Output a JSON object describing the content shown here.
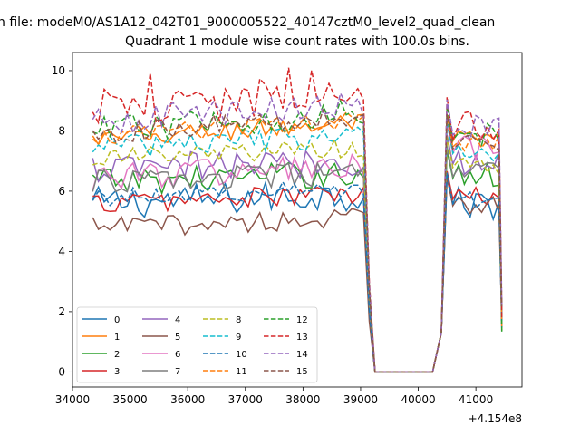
{
  "figure": {
    "suptitle": "n file: modeM0/AS1A12_042T01_9000005522_40147cztM0_level2_quad_clean",
    "title": "Quadrant 1 module wise count rates with 100.0s bins.",
    "offset_label": "+4.154e8"
  },
  "chart_data": {
    "type": "line",
    "title": "Quadrant 1 module wise count rates with 100.0s bins.",
    "xlabel": "",
    "ylabel": "",
    "x_offset": 415400000,
    "xlim": [
      34000,
      41800
    ],
    "ylim": [
      -0.5,
      10.6
    ],
    "xticks": [
      34000,
      35000,
      36000,
      37000,
      38000,
      39000,
      40000,
      41000
    ],
    "xtick_labels": [
      "34000",
      "35000",
      "36000",
      "37000",
      "38000",
      "39000",
      "40000",
      "41000"
    ],
    "yticks": [
      0,
      2,
      4,
      6,
      8,
      10
    ],
    "ytick_labels": [
      "0",
      "2",
      "4",
      "6",
      "8",
      "10"
    ],
    "grid": false,
    "legend_location": "lower-left",
    "legend_columns": 4,
    "segments": [
      {
        "start": 34350,
        "end": 39050,
        "step": 100
      },
      {
        "start": 40350,
        "end": 41450,
        "step": 100
      }
    ],
    "gap_level": 0,
    "series": [
      {
        "name": "0",
        "color": "#1f77b4",
        "dash": "solid",
        "level1": 5.6,
        "level2": 5.6,
        "amp": 0.55
      },
      {
        "name": "1",
        "color": "#ff7f0e",
        "dash": "solid",
        "level1": 7.7,
        "level2": 7.7,
        "amp": 0.35
      },
      {
        "name": "2",
        "color": "#2ca02c",
        "dash": "solid",
        "level1": 6.3,
        "level2": 6.5,
        "amp": 0.45
      },
      {
        "name": "3",
        "color": "#d62728",
        "dash": "solid",
        "level1": 5.6,
        "level2": 5.8,
        "amp": 0.35
      },
      {
        "name": "4",
        "color": "#9467bd",
        "dash": "solid",
        "level1": 6.7,
        "level2": 7.0,
        "amp": 0.5
      },
      {
        "name": "5",
        "color": "#8c564b",
        "dash": "solid",
        "level1": 4.8,
        "level2": 5.6,
        "amp": 0.35
      },
      {
        "name": "6",
        "color": "#e377c2",
        "dash": "solid",
        "level1": 6.5,
        "level2": 7.4,
        "amp": 0.5
      },
      {
        "name": "7",
        "color": "#7f7f7f",
        "dash": "solid",
        "level1": 6.3,
        "level2": 6.6,
        "amp": 0.4
      },
      {
        "name": "8",
        "color": "#bcbd22",
        "dash": "dashed",
        "level1": 7.1,
        "level2": 6.9,
        "amp": 0.35
      },
      {
        "name": "9",
        "color": "#17becf",
        "dash": "dashed",
        "level1": 7.5,
        "level2": 7.4,
        "amp": 0.4
      },
      {
        "name": "10",
        "color": "#1f77b4",
        "dash": "dashed",
        "level1": 5.8,
        "level2": 5.7,
        "amp": 0.3
      },
      {
        "name": "11",
        "color": "#ff7f0e",
        "dash": "dashed",
        "level1": 7.8,
        "level2": 7.6,
        "amp": 0.3
      },
      {
        "name": "12",
        "color": "#2ca02c",
        "dash": "dashed",
        "level1": 8.0,
        "level2": 7.9,
        "amp": 0.45
      },
      {
        "name": "13",
        "color": "#d62728",
        "dash": "dashed",
        "level1": 8.6,
        "level2": 8.2,
        "amp": 0.55
      },
      {
        "name": "14",
        "color": "#9467bd",
        "dash": "dashed",
        "level1": 8.3,
        "level2": 8.1,
        "amp": 0.45
      },
      {
        "name": "15",
        "color": "#8c564b",
        "dash": "dashed",
        "level1": 7.9,
        "level2": 7.6,
        "amp": 0.35
      }
    ]
  }
}
